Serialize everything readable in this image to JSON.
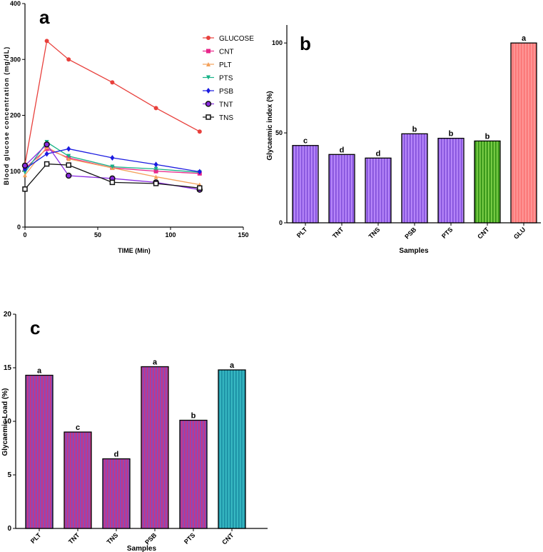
{
  "chart_data": [
    {
      "type": "line",
      "panel_label": "a",
      "title": "",
      "xlabel": "TIME (Min)",
      "ylabel": "Blood glucose concentration (mg/dL)",
      "xlim": [
        0,
        150
      ],
      "ylim": [
        0,
        400
      ],
      "xticks": [
        "0",
        "50",
        "100",
        "150"
      ],
      "yticks": [
        "0",
        "100",
        "200",
        "300",
        "400"
      ],
      "x": [
        0,
        15,
        30,
        60,
        90,
        120
      ],
      "legend_position": "top-right",
      "series": [
        {
          "name": "GLUCOSE",
          "color": "#e8403c",
          "marker": "circle",
          "values": [
            112,
            333,
            300,
            259,
            213,
            171
          ]
        },
        {
          "name": "CNT",
          "color": "#e8268a",
          "marker": "square",
          "values": [
            105,
            140,
            124,
            106,
            100,
            96
          ]
        },
        {
          "name": "PLT",
          "color": "#f4a15a",
          "marker": "triangle-up",
          "values": [
            93,
            143,
            122,
            106,
            90,
            76
          ]
        },
        {
          "name": "PTS",
          "color": "#19b388",
          "marker": "triangle-down",
          "values": [
            98,
            152,
            127,
            108,
            104,
            98
          ]
        },
        {
          "name": "PSB",
          "color": "#1a1ae0",
          "marker": "diamond",
          "values": [
            104,
            131,
            140,
            124,
            112,
            99
          ]
        },
        {
          "name": "TNT",
          "color": "#8a2be2",
          "marker": "hex",
          "values": [
            110,
            148,
            92,
            87,
            80,
            67
          ]
        },
        {
          "name": "TNS",
          "color": "#111111",
          "marker": "open-square",
          "values": [
            68,
            113,
            111,
            80,
            78,
            70
          ]
        }
      ]
    },
    {
      "type": "bar",
      "panel_label": "b",
      "title": "",
      "xlabel": "Samples",
      "ylabel": "Glycaemic index (%)",
      "ylim": [
        0,
        110
      ],
      "yticks": [
        "0",
        "50",
        "100"
      ],
      "categories": [
        "PLT",
        "TNT",
        "TNS",
        "PSB",
        "PTS",
        "CNT",
        "GLU"
      ],
      "values": [
        43,
        38,
        36,
        49.5,
        47,
        45.5,
        100
      ],
      "letters": [
        "c",
        "d",
        "d",
        "b",
        "b",
        "b",
        "a"
      ],
      "colors": [
        "#8c5ae0",
        "#8c5ae0",
        "#8c5ae0",
        "#8c5ae0",
        "#8c5ae0",
        "#58b32a",
        "#fb8080"
      ]
    },
    {
      "type": "bar",
      "panel_label": "c",
      "title": "",
      "xlabel": "Samples",
      "ylabel": "Glycaemic Load (%)",
      "ylim": [
        0,
        20
      ],
      "yticks": [
        "0",
        "5",
        "10",
        "15",
        "20"
      ],
      "categories": [
        "PLT",
        "TNT",
        "TNS",
        "PSB",
        "PTS",
        "CNT"
      ],
      "values": [
        14.3,
        9.0,
        6.5,
        15.1,
        10.1,
        14.8
      ],
      "letters": [
        "a",
        "c",
        "d",
        "a",
        "b",
        "a"
      ],
      "colors": [
        "#cc3a90",
        "#cc3a90",
        "#cc3a90",
        "#cc3a90",
        "#cc3a90",
        "#2aa3b0"
      ]
    }
  ]
}
